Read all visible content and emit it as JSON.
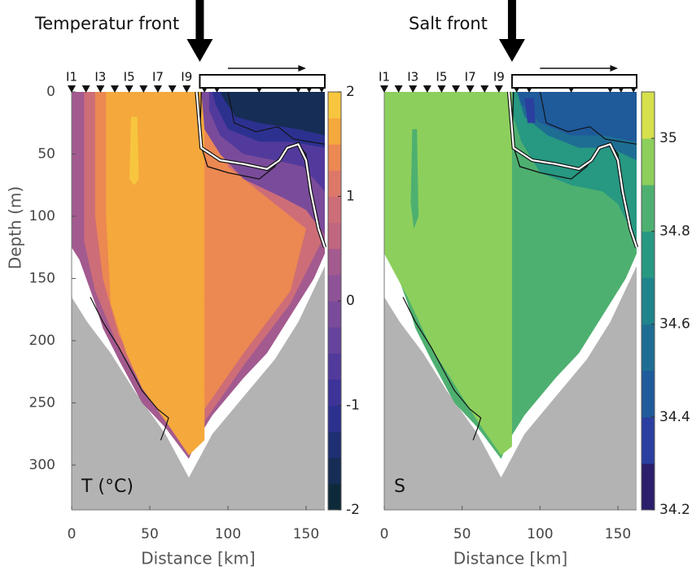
{
  "chart_data": [
    {
      "type": "contour",
      "title": "Temperatur front",
      "label": "T (°C)",
      "xlabel": "Distance [km]",
      "ylabel": "Depth (m)",
      "stations": [
        "I1",
        "I3",
        "I5",
        "I7",
        "I9"
      ],
      "xlim": [
        0,
        162
      ],
      "xticks": [
        0,
        50,
        100,
        150
      ],
      "ylim": [
        0,
        336
      ],
      "yticks": [
        0,
        50,
        100,
        150,
        200,
        250,
        300
      ],
      "regions": [
        0.25,
        0.75,
        1.25,
        1.5,
        1.75,
        -0.25,
        -0.75,
        -1.25,
        -1.75
      ],
      "colorbar": {
        "lim": [
          -2,
          2
        ],
        "ticks": [
          -2,
          -1,
          0,
          1,
          2
        ],
        "colors": [
          "#0e2a3a",
          "#162d55",
          "#1f2f74",
          "#2c3190",
          "#3d3399",
          "#523a9c",
          "#66439c",
          "#7a4b9a",
          "#8e5397",
          "#a35a8f",
          "#c0667f",
          "#cd6d78",
          "#dd7868",
          "#ec8852",
          "#f5a83c",
          "#f7c63e"
        ]
      }
    },
    {
      "type": "contour",
      "title": "Salt front",
      "label": "S",
      "xlabel": "Distance [km]",
      "stations": [
        "I1",
        "I3",
        "I5",
        "I7",
        "I9"
      ],
      "xlim": [
        0,
        162
      ],
      "xticks": [
        0,
        50,
        100,
        150
      ],
      "ylim": [
        0,
        336
      ],
      "regions": [
        34.85,
        34.95,
        34.85,
        34.75,
        34.55,
        34.45,
        34.35
      ],
      "colorbar": {
        "lim": [
          34.2,
          35.1
        ],
        "ticks": [
          34.2,
          34.4,
          34.6,
          34.8,
          35
        ],
        "colors": [
          "#2c1e6b",
          "#2b3fa0",
          "#1f5a9a",
          "#1e6e94",
          "#1f848c",
          "#279882",
          "#4eb070",
          "#8ccf5c",
          "#d7df4c"
        ]
      }
    }
  ]
}
